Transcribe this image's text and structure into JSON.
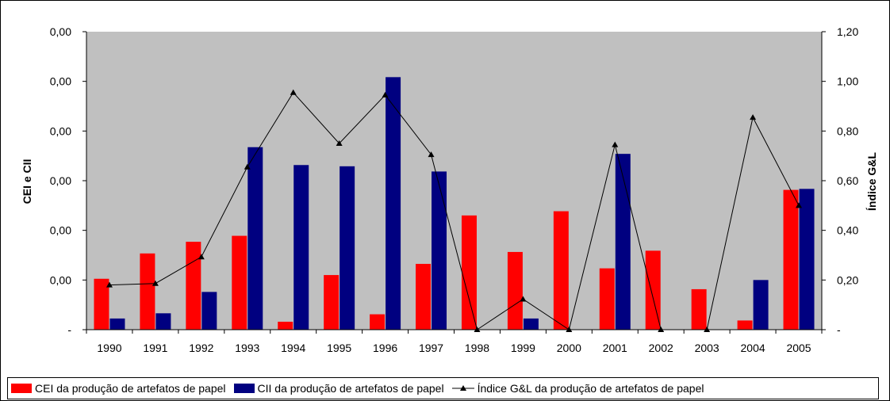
{
  "chart_data": {
    "type": "bar",
    "categories": [
      "1990",
      "1991",
      "1992",
      "1993",
      "1994",
      "1995",
      "1996",
      "1997",
      "1998",
      "1999",
      "2000",
      "2001",
      "2002",
      "2003",
      "2004",
      "2005"
    ],
    "series": [
      {
        "name": "CEI da produção de artefatos de papel",
        "axis": "left",
        "color": "#ff0000",
        "values": [
          0.205,
          0.307,
          0.354,
          0.378,
          0.032,
          0.22,
          0.062,
          0.265,
          0.46,
          0.313,
          0.477,
          0.247,
          0.318,
          0.163,
          0.037,
          0.563
        ]
      },
      {
        "name": "CII da produção de artefatos de papel",
        "axis": "left",
        "color": "#000080",
        "values": [
          0.045,
          0.066,
          0.152,
          0.735,
          0.663,
          0.658,
          1.017,
          0.637,
          0.0,
          0.045,
          0.0,
          0.708,
          0.0,
          0.0,
          0.2,
          0.567
        ]
      },
      {
        "name": "Índice G&L da produção de artefatos de papel",
        "axis": "right",
        "type": "line",
        "marker": "triangle",
        "color": "#000000",
        "values": [
          0.18,
          0.186,
          0.293,
          0.655,
          0.955,
          0.75,
          0.945,
          0.705,
          0.0,
          0.123,
          0.0,
          0.745,
          0.0,
          0.0,
          0.855,
          0.5
        ]
      }
    ],
    "ylabel_left": "CEI e CII",
    "ylabel_right": "Índice G&L",
    "ylim_left": [
      0,
      1.2
    ],
    "ylim_right": [
      0,
      1.2
    ],
    "left_ticks": [
      "-",
      "0,00",
      "0,00",
      "0,00",
      "0,00",
      "0,00",
      "0,00"
    ],
    "right_ticks": [
      "-",
      "0,20",
      "0,40",
      "0,60",
      "0,80",
      "1,00",
      "1,20"
    ],
    "plot_background": "#c0c0c0",
    "grid": false,
    "legend_position": "bottom"
  }
}
